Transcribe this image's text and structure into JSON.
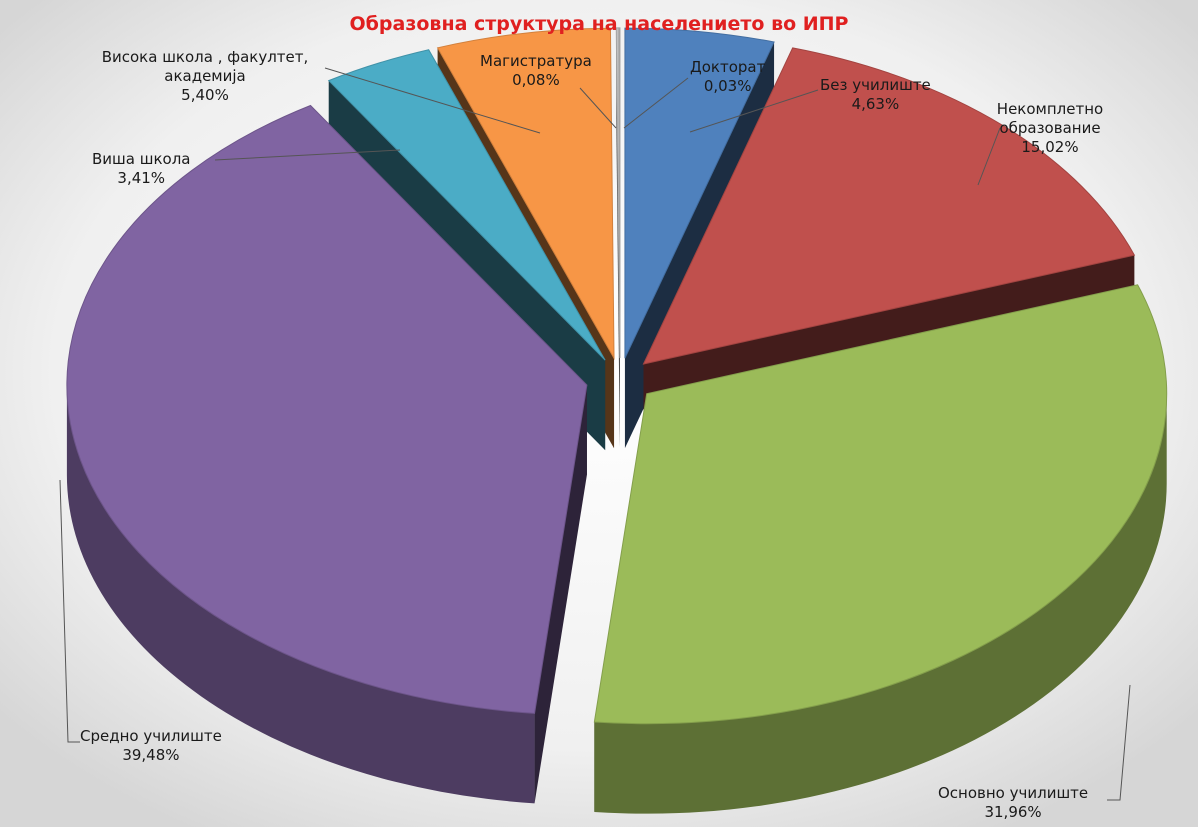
{
  "chart_data": {
    "type": "pie",
    "title": "Образовна структура на населението во ИПР",
    "slices": [
      {
        "name": "Без училиште",
        "value": 4.63,
        "label": "4,63%",
        "color": "#4f81bd"
      },
      {
        "name": "Некомплетно образование",
        "value": 15.02,
        "label": "15,02%",
        "color": "#c0504d"
      },
      {
        "name": "Основно училиште",
        "value": 31.96,
        "label": "31,96%",
        "color": "#9bbb59"
      },
      {
        "name": "Средно училиште",
        "value": 39.48,
        "label": "39,48%",
        "color": "#8064a2"
      },
      {
        "name": "Виша школа",
        "value": 3.41,
        "label": "3,41%",
        "color": "#4bacc6"
      },
      {
        "name": "Висока школа , факултет, академија",
        "value": 5.4,
        "label": "5,40%",
        "color": "#f79646"
      },
      {
        "name": "Магистратура",
        "value": 0.08,
        "label": "0,08%",
        "color": "#c0c0c0"
      },
      {
        "name": "Докторат",
        "value": 0.03,
        "label": "0,03%",
        "color": "#c0c0c0"
      }
    ],
    "exploded": true,
    "legend": "none"
  }
}
